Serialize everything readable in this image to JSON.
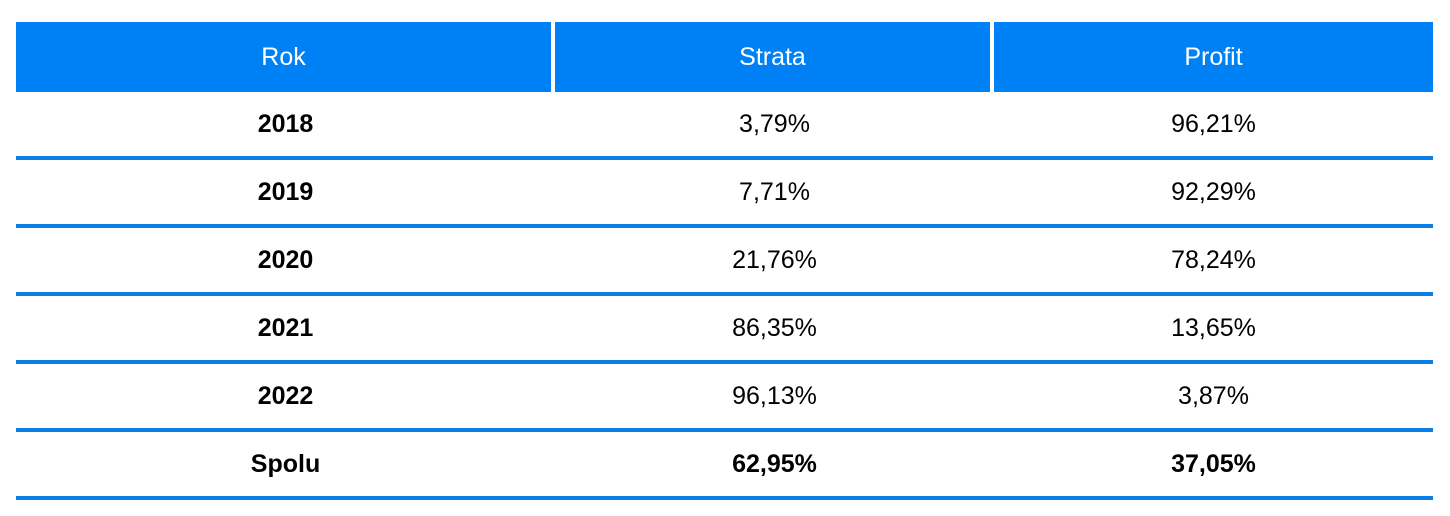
{
  "table": {
    "headers": [
      "Rok",
      "Strata",
      "Profit"
    ],
    "rows": [
      {
        "year": "2018",
        "loss": "3,79%",
        "profit": "96,21%"
      },
      {
        "year": "2019",
        "loss": "7,71%",
        "profit": "92,29%"
      },
      {
        "year": "2020",
        "loss": "21,76%",
        "profit": "78,24%"
      },
      {
        "year": "2021",
        "loss": "86,35%",
        "profit": "13,65%"
      },
      {
        "year": "2022",
        "loss": "96,13%",
        "profit": "3,87%"
      }
    ],
    "total": {
      "label": "Spolu",
      "loss": "62,95%",
      "profit": "37,05%"
    }
  },
  "colors": {
    "header_bg": "#0080f5",
    "header_text": "#ffffff",
    "row_separator": "#0a7fe6"
  }
}
